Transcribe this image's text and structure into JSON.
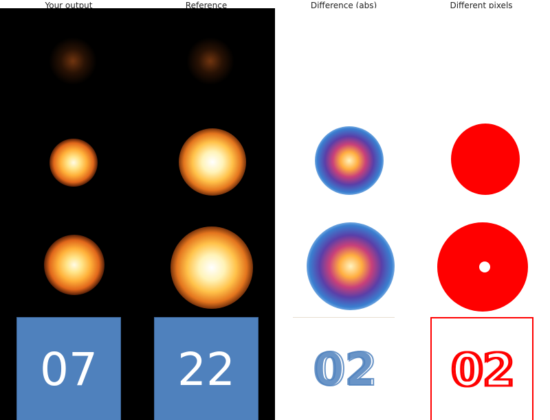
{
  "columns": [
    {
      "title": "Your output"
    },
    {
      "title": "Reference"
    },
    {
      "title": "Difference (abs)"
    },
    {
      "title": "Different pixels"
    }
  ],
  "tiles": {
    "output_number": "07",
    "reference_number": "22",
    "overlay_number": "02"
  },
  "colors": {
    "tile_blue": "#4f81bd",
    "diff_red": "#ff0000",
    "dark_bg": "#000000"
  }
}
